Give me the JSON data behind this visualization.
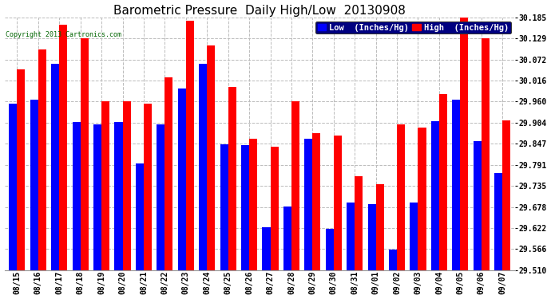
{
  "title": "Barometric Pressure  Daily High/Low  20130908",
  "copyright": "Copyright 2013 Cartronics.com",
  "legend_low": "Low  (Inches/Hg)",
  "legend_high": "High  (Inches/Hg)",
  "dates": [
    "08/15",
    "08/16",
    "08/17",
    "08/18",
    "08/19",
    "08/20",
    "08/21",
    "08/22",
    "08/23",
    "08/24",
    "08/25",
    "08/26",
    "08/27",
    "08/28",
    "08/29",
    "08/30",
    "08/31",
    "09/01",
    "09/02",
    "09/03",
    "09/04",
    "09/05",
    "09/06",
    "09/07"
  ],
  "low_values": [
    29.955,
    29.965,
    30.06,
    29.905,
    29.9,
    29.906,
    29.795,
    29.9,
    29.995,
    30.06,
    29.845,
    29.843,
    29.625,
    29.68,
    29.86,
    29.62,
    29.69,
    29.686,
    29.565,
    29.69,
    29.908,
    29.965,
    29.855,
    29.77
  ],
  "high_values": [
    30.045,
    30.1,
    30.165,
    30.13,
    29.96,
    29.96,
    29.955,
    30.025,
    30.175,
    30.11,
    30.0,
    29.86,
    29.84,
    29.96,
    29.875,
    29.87,
    29.76,
    29.74,
    29.9,
    29.89,
    29.98,
    30.185,
    30.13,
    29.91
  ],
  "ylim_min": 29.51,
  "ylim_max": 30.185,
  "yticks": [
    29.51,
    29.566,
    29.622,
    29.678,
    29.735,
    29.791,
    29.847,
    29.904,
    29.96,
    30.016,
    30.072,
    30.129,
    30.185
  ],
  "low_color": "#0000ff",
  "high_color": "#ff0000",
  "bg_color": "#ffffff",
  "grid_color": "#bbbbbb",
  "title_color": "#000000",
  "copyright_color": "#006400",
  "bar_width": 0.38,
  "title_fontsize": 11,
  "tick_fontsize": 7,
  "legend_fontsize": 7.5
}
